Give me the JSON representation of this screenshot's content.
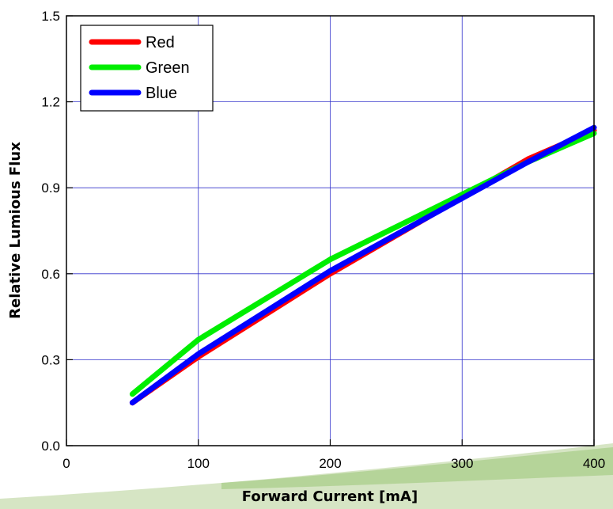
{
  "chart_data": {
    "type": "line",
    "title": "",
    "xlabel": "Forward Current [mA]",
    "ylabel": "Relative Lumious Flux",
    "xlim": [
      0,
      400
    ],
    "ylim": [
      0.0,
      1.5
    ],
    "xticks": [
      0,
      100,
      200,
      300,
      400
    ],
    "yticks": [
      0.0,
      0.3,
      0.6,
      0.9,
      1.2,
      1.5
    ],
    "xtick_labels": [
      "0",
      "100",
      "200",
      "300",
      "400"
    ],
    "ytick_labels": [
      "0.0",
      "0.3",
      "0.6",
      "0.9",
      "1.2",
      "1.5"
    ],
    "grid": true,
    "legend_position": "top-left",
    "series": [
      {
        "name": "Red",
        "color": "#ff0000",
        "x": [
          50,
          100,
          200,
          350,
          400
        ],
        "y": [
          0.15,
          0.31,
          0.6,
          1.0,
          1.1
        ]
      },
      {
        "name": "Green",
        "color": "#00ee00",
        "x": [
          50,
          100,
          200,
          350,
          400
        ],
        "y": [
          0.18,
          0.37,
          0.65,
          0.99,
          1.09
        ]
      },
      {
        "name": "Blue",
        "color": "#0000ff",
        "x": [
          50,
          100,
          200,
          350,
          400
        ],
        "y": [
          0.15,
          0.32,
          0.61,
          0.99,
          1.11
        ]
      }
    ]
  }
}
